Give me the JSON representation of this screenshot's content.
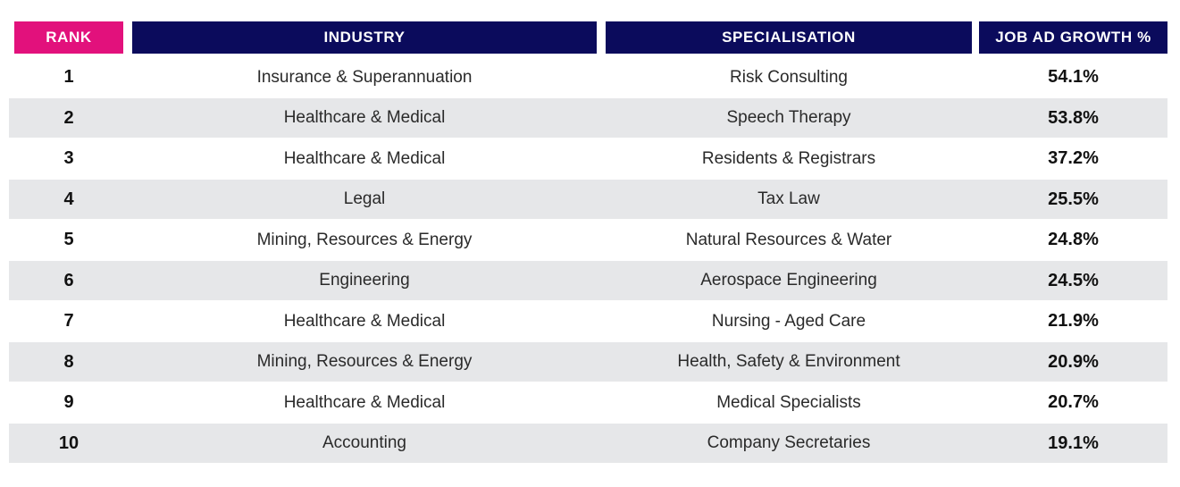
{
  "colors": {
    "rank_header_bg": "#e2117c",
    "header_bg": "#0b0b5c",
    "header_text": "#ffffff",
    "row_shade": "#e6e7e9",
    "row_plain": "#ffffff"
  },
  "headers": {
    "rank": "RANK",
    "industry": "INDUSTRY",
    "specialisation": "SPECIALISATION",
    "growth": "JOB AD GROWTH %"
  },
  "rows": [
    {
      "rank": "1",
      "industry": "Insurance & Superannuation",
      "specialisation": "Risk Consulting",
      "growth": "54.1%"
    },
    {
      "rank": "2",
      "industry": "Healthcare & Medical",
      "specialisation": "Speech Therapy",
      "growth": "53.8%"
    },
    {
      "rank": "3",
      "industry": "Healthcare & Medical",
      "specialisation": "Residents & Registrars",
      "growth": "37.2%"
    },
    {
      "rank": "4",
      "industry": "Legal",
      "specialisation": "Tax Law",
      "growth": "25.5%"
    },
    {
      "rank": "5",
      "industry": "Mining, Resources & Energy",
      "specialisation": "Natural Resources & Water",
      "growth": "24.8%"
    },
    {
      "rank": "6",
      "industry": "Engineering",
      "specialisation": "Aerospace Engineering",
      "growth": "24.5%"
    },
    {
      "rank": "7",
      "industry": "Healthcare & Medical",
      "specialisation": "Nursing - Aged Care",
      "growth": "21.9%"
    },
    {
      "rank": "8",
      "industry": "Mining, Resources & Energy",
      "specialisation": "Health, Safety & Environment",
      "growth": "20.9%"
    },
    {
      "rank": "9",
      "industry": "Healthcare & Medical",
      "specialisation": "Medical Specialists",
      "growth": "20.7%"
    },
    {
      "rank": "10",
      "industry": "Accounting",
      "specialisation": "Company Secretaries",
      "growth": "19.1%"
    }
  ]
}
